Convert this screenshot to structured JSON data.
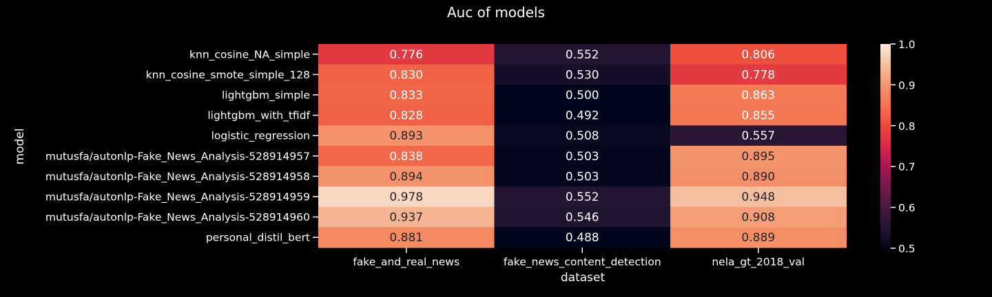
{
  "chart_data": {
    "type": "heatmap",
    "title": "Auc of models",
    "xlabel": "dataset",
    "ylabel": "model",
    "columns": [
      "fake_and_real_news",
      "fake_news_content_detection",
      "nela_gt_2018_val"
    ],
    "rows": [
      "knn_cosine_NA_simple",
      "knn_cosine_smote_simple_128",
      "lightgbm_simple",
      "lightgbm_with_tfidf",
      "logistic_regression",
      "mutusfa/autonlp-Fake_News_Analysis-528914957",
      "mutusfa/autonlp-Fake_News_Analysis-528914958",
      "mutusfa/autonlp-Fake_News_Analysis-528914959",
      "mutusfa/autonlp-Fake_News_Analysis-528914960",
      "personal_distil_bert"
    ],
    "values": [
      [
        0.776,
        0.552,
        0.806
      ],
      [
        0.83,
        0.53,
        0.778
      ],
      [
        0.833,
        0.5,
        0.863
      ],
      [
        0.828,
        0.492,
        0.855
      ],
      [
        0.893,
        0.508,
        0.557
      ],
      [
        0.838,
        0.503,
        0.895
      ],
      [
        0.894,
        0.503,
        0.89
      ],
      [
        0.978,
        0.552,
        0.948
      ],
      [
        0.937,
        0.546,
        0.908
      ],
      [
        0.881,
        0.488,
        0.889
      ]
    ],
    "colorbar": {
      "vmin": 0.5,
      "vmax": 1.0,
      "ticks": [
        "0.5",
        "0.6",
        "0.7",
        "0.8",
        "0.9",
        "1.0"
      ]
    },
    "colormap": "rocket",
    "background": "#000000",
    "text_color": "#ffffff"
  }
}
